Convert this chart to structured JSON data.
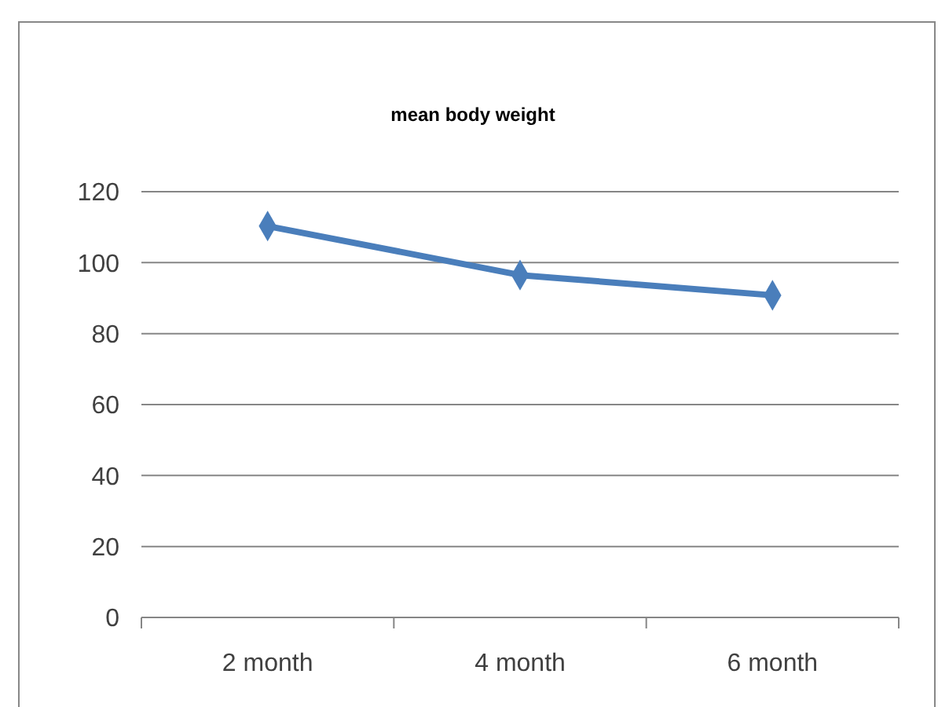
{
  "chart_data": {
    "type": "line",
    "title": "mean  body weight",
    "categories": [
      "2 month",
      "4 month",
      "6 month"
    ],
    "series": [
      {
        "color": "#4a7ebb",
        "values": [
          110.3,
          96.5,
          90.8
        ]
      }
    ],
    "ylim": [
      0,
      120
    ],
    "yticks": [
      0,
      20,
      40,
      60,
      80,
      100,
      120
    ],
    "grid": "y",
    "marker": "diamond",
    "line_style": "solid"
  }
}
